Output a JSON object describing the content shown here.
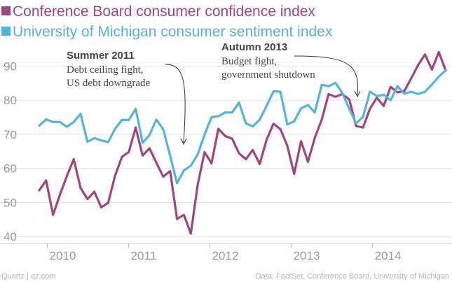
{
  "chart_data": {
    "type": "line",
    "colors": {
      "conference": "#a0457e",
      "michigan": "#57b3dc",
      "grid": "#e2e2e2",
      "tick": "#9a9a9a"
    },
    "xlim": [
      2009.9,
      2014.9
    ],
    "ylim": [
      38,
      95
    ],
    "y_ticks": [
      40,
      50,
      60,
      70,
      80,
      90
    ],
    "x_ticks": [
      {
        "value": 2010,
        "label": "2010"
      },
      {
        "value": 2011,
        "label": "2011"
      },
      {
        "value": 2012,
        "label": "2012"
      },
      {
        "value": 2013,
        "label": "2013"
      },
      {
        "value": 2014,
        "label": "2014"
      }
    ],
    "series": [
      {
        "name": "Conference Board consumer confidence index",
        "key": "conference",
        "values": [
          53.6,
          56.5,
          46.4,
          52.3,
          57.7,
          62.7,
          54.3,
          51.0,
          53.2,
          48.6,
          49.9,
          57.8,
          63.4,
          64.8,
          72.0,
          63.8,
          65.9,
          61.7,
          57.6,
          59.2,
          45.2,
          46.4,
          40.9,
          55.2,
          64.8,
          61.5,
          71.6,
          69.5,
          68.7,
          64.4,
          62.7,
          65.4,
          61.3,
          68.4,
          73.1,
          71.5,
          66.7,
          58.4,
          68.0,
          61.9,
          69.0,
          74.3,
          81.8,
          81.0,
          81.8,
          80.2,
          72.4,
          72.0,
          77.5,
          80.7,
          78.3,
          83.9,
          82.3,
          82.7,
          86.4,
          90.3,
          93.4,
          89.0,
          94.1,
          88.7
        ]
      },
      {
        "name": "University of Michigan consumer sentiment index",
        "key": "michigan",
        "values": [
          72.5,
          74.4,
          73.6,
          73.6,
          72.2,
          73.6,
          76.0,
          67.8,
          68.9,
          68.2,
          67.7,
          71.6,
          74.2,
          74.2,
          77.5,
          67.5,
          69.8,
          74.3,
          71.5,
          63.7,
          55.7,
          59.4,
          60.8,
          64.1,
          69.9,
          75.0,
          75.3,
          76.4,
          76.4,
          79.3,
          73.2,
          72.3,
          74.3,
          78.3,
          82.6,
          82.5,
          72.9,
          73.8,
          77.6,
          78.6,
          76.4,
          84.5,
          84.1,
          85.1,
          82.1,
          77.5,
          73.2,
          75.1,
          82.5,
          81.2,
          81.6,
          80.0,
          84.1,
          81.9,
          82.5,
          81.8,
          82.5,
          84.6,
          86.9,
          88.8
        ]
      }
    ],
    "annotations": [
      {
        "title": "Summer 2011",
        "lines": [
          "Debt ceiling fight,",
          "US debt downgrade"
        ]
      },
      {
        "title": "Autumn 2013",
        "lines": [
          "Budget fight,",
          "government shutdown"
        ]
      }
    ]
  },
  "footer": {
    "source": "Quartz | qz.com",
    "credit": "Data: FactSet, Conference Board, University of Michigan"
  }
}
